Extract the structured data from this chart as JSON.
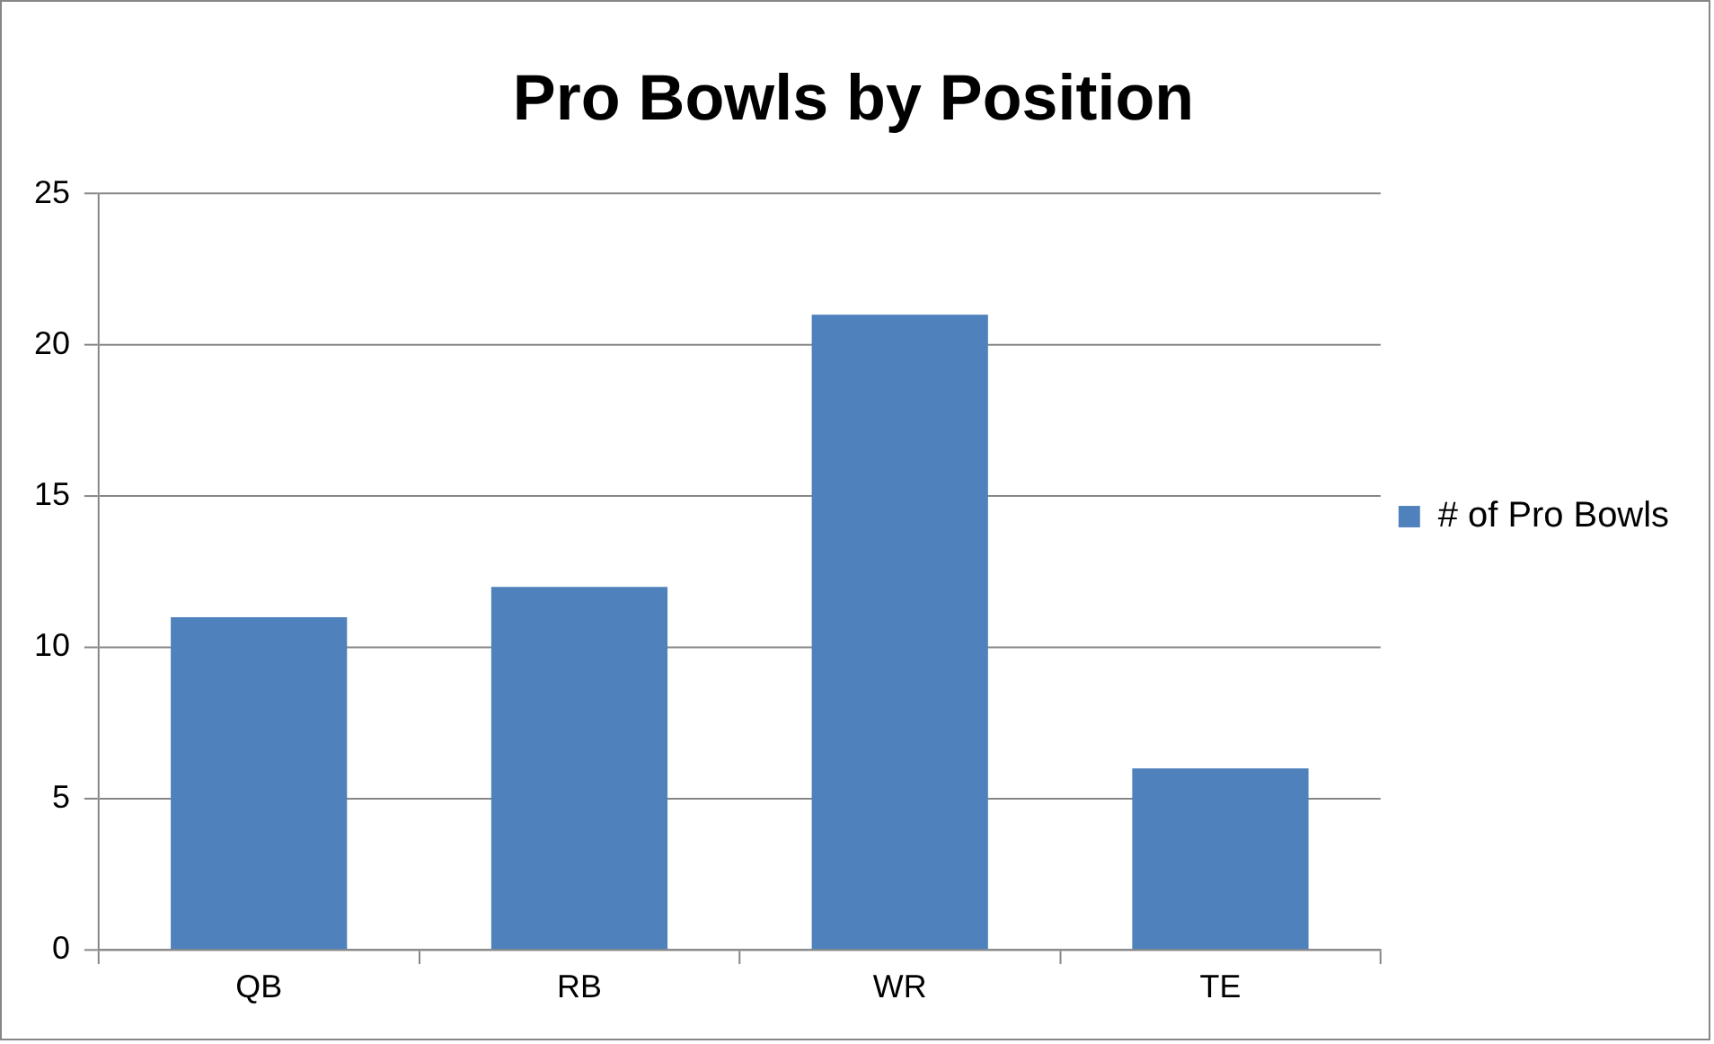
{
  "chart_data": {
    "type": "bar",
    "title": "Pro Bowls by Position",
    "categories": [
      "QB",
      "RB",
      "WR",
      "TE"
    ],
    "series": [
      {
        "name": "# of Pro Bowls",
        "color": "#4f81bd",
        "values": [
          11,
          12,
          21,
          6
        ]
      }
    ],
    "ylim": [
      0,
      25
    ],
    "yticks": [
      0,
      5,
      10,
      15,
      20,
      25
    ],
    "grid": "y",
    "legend": "right"
  }
}
